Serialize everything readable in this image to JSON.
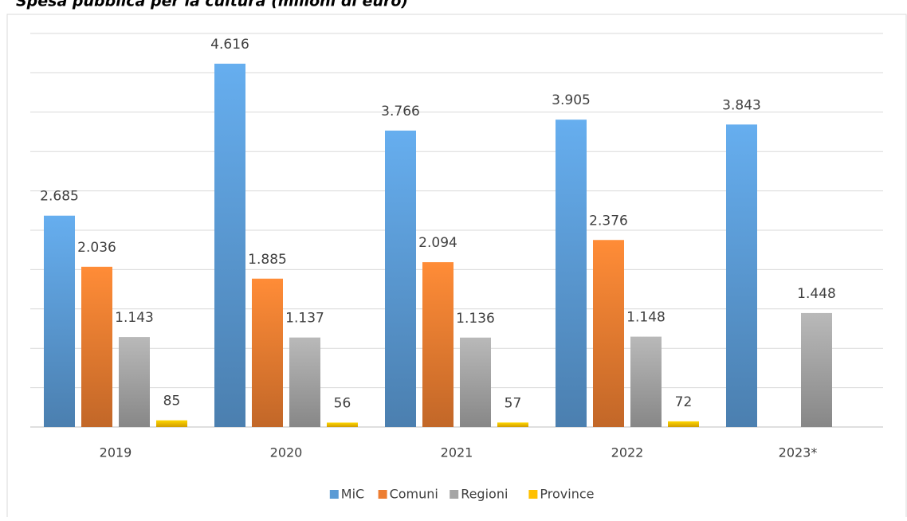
{
  "chart_data": {
    "type": "bar",
    "title": "Spesa pubblica per la cultura (milioni di euro)",
    "categories": [
      "2019",
      "2020",
      "2021",
      "2022",
      "2023*"
    ],
    "series": [
      {
        "name": "MiC",
        "color": "#5b9bd5",
        "values": [
          2685,
          4616,
          3766,
          3905,
          3843
        ],
        "value_labels": [
          "2.685",
          "4.616",
          "3.766",
          "3.905",
          "3.843"
        ]
      },
      {
        "name": "Comuni",
        "color": "#ed7d31",
        "values": [
          2036,
          1885,
          2094,
          2376,
          null
        ],
        "value_labels": [
          "2.036",
          "1.885",
          "2.094",
          "2.376",
          null
        ]
      },
      {
        "name": "Regioni",
        "color": "#a5a5a5",
        "values": [
          1143,
          1137,
          1136,
          1148,
          1448
        ],
        "value_labels": [
          "1.143",
          "1.137",
          "1.136",
          "1.148",
          "1.448"
        ]
      },
      {
        "name": "Province",
        "color": "#ffc000",
        "values": [
          85,
          56,
          57,
          72,
          null
        ],
        "value_labels": [
          "85",
          "56",
          "57",
          "72",
          null
        ]
      }
    ],
    "ylim": [
      0,
      5000
    ],
    "yticks": [
      0,
      500,
      1000,
      1500,
      2000,
      2500,
      3000,
      3500,
      4000,
      4500,
      5000
    ],
    "grid": true,
    "legend": "bottom"
  }
}
